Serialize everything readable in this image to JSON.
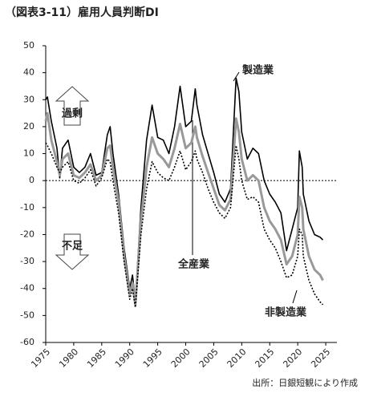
{
  "chart_data": {
    "type": "line",
    "title": "（図表3-11）雇用人員判断DI",
    "source": "出所：日銀短観により作成",
    "annotations": [
      "過剰",
      "不足"
    ],
    "x": [
      1975,
      1975.3,
      1976,
      1977,
      1977.5,
      1978,
      1979,
      1980,
      1981,
      1982,
      1983,
      1984,
      1985,
      1986,
      1986.5,
      1987,
      1988,
      1989,
      1990,
      1990.5,
      1991,
      1992,
      1993,
      1994,
      1995,
      1996,
      1997,
      1998,
      1999,
      2000,
      2001,
      2001.7,
      2002,
      2003,
      2004,
      2005,
      2006,
      2007,
      2008,
      2009,
      2009.5,
      2010,
      2011,
      2012,
      2013,
      2014,
      2015,
      2016,
      2017,
      2018,
      2019,
      2020,
      2020.3,
      2020.8,
      2021,
      2022,
      2023,
      2024,
      2024.5
    ],
    "series": [
      {
        "name": "製造業",
        "color": "#000000",
        "style": "solid",
        "width": 1.6,
        "values": [
          30,
          31,
          22,
          12,
          1,
          12,
          15,
          5,
          3,
          5,
          10,
          2,
          3,
          17,
          20,
          10,
          -5,
          -25,
          -40,
          -35,
          -45,
          -10,
          15,
          28,
          16,
          15,
          10,
          20,
          35,
          20,
          22,
          34,
          28,
          17,
          10,
          3,
          -5,
          -8,
          -3,
          38,
          33,
          18,
          8,
          12,
          10,
          0,
          -5,
          -8,
          -12,
          -26,
          -18,
          -10,
          11,
          5,
          -5,
          -15,
          -20,
          -21,
          -22
        ]
      },
      {
        "name": "全産業",
        "color": "#999999",
        "style": "solid",
        "width": 3,
        "values": [
          22,
          25,
          15,
          7,
          2,
          8,
          10,
          2,
          1,
          3,
          6,
          0,
          2,
          12,
          13,
          5,
          -8,
          -28,
          -42,
          -38,
          -46,
          -15,
          5,
          16,
          10,
          8,
          5,
          12,
          21,
          12,
          14,
          20,
          16,
          9,
          3,
          -3,
          -9,
          -11,
          -7,
          23,
          18,
          8,
          0,
          2,
          0,
          -10,
          -15,
          -18,
          -22,
          -31,
          -28,
          -20,
          -6,
          -10,
          -18,
          -28,
          -33,
          -35,
          -37
        ]
      },
      {
        "name": "非製造業",
        "color": "#000000",
        "style": "dotted",
        "width": 1.6,
        "values": [
          14,
          13,
          10,
          5,
          3,
          5,
          7,
          0,
          -1,
          1,
          4,
          -2,
          1,
          8,
          7,
          0,
          -12,
          -30,
          -44,
          -40,
          -47,
          -20,
          -3,
          7,
          3,
          1,
          0,
          5,
          11,
          4,
          7,
          11,
          8,
          3,
          -3,
          -8,
          -12,
          -14,
          -10,
          13,
          8,
          0,
          -7,
          -6,
          -8,
          -18,
          -22,
          -25,
          -30,
          -36,
          -35,
          -28,
          -18,
          -20,
          -28,
          -37,
          -42,
          -45,
          -46
        ]
      }
    ],
    "xlim": [
      1975,
      2027
    ],
    "xticks": [
      1975,
      1980,
      1985,
      1990,
      1995,
      2000,
      2005,
      2010,
      2015,
      2020,
      2025
    ],
    "ylim": [
      -60,
      50
    ],
    "yticks": [
      50,
      40,
      30,
      20,
      10,
      0,
      -10,
      -20,
      -30,
      -40,
      -50,
      -60
    ],
    "zero_line": true
  }
}
